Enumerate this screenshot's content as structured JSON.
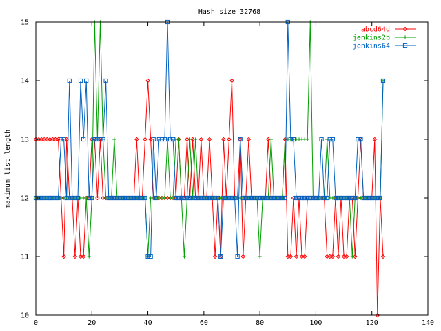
{
  "chart_data": {
    "type": "line",
    "title": "Hash size 32768",
    "xlabel": "",
    "ylabel": "maximum list length",
    "xlim": [
      0,
      140
    ],
    "ylim": [
      10,
      15
    ],
    "xticks": [
      0,
      20,
      40,
      60,
      80,
      100,
      120,
      140
    ],
    "yticks": [
      10,
      11,
      12,
      13,
      14,
      15
    ],
    "grid": false,
    "legend": "top-right",
    "series": [
      {
        "name": "abcd64d",
        "color": "#ff0000",
        "marker": "diamond",
        "values": [
          13,
          13,
          13,
          13,
          13,
          13,
          13,
          13,
          13,
          12,
          11,
          13,
          12,
          12,
          11,
          12,
          11,
          11,
          12,
          12,
          13,
          13,
          12,
          13,
          12,
          12,
          12,
          12,
          12,
          12,
          12,
          12,
          12,
          12,
          12,
          12,
          13,
          12,
          12,
          13,
          14,
          13,
          12,
          12,
          12,
          12,
          12,
          12,
          12,
          12,
          12,
          13,
          12,
          12,
          13,
          12,
          13,
          12,
          12,
          13,
          12,
          12,
          13,
          12,
          11,
          12,
          11,
          13,
          12,
          13,
          14,
          12,
          12,
          13,
          11,
          12,
          13,
          12,
          12,
          12,
          12,
          12,
          12,
          13,
          12,
          12,
          12,
          12,
          12,
          13,
          11,
          11,
          12,
          11,
          12,
          11,
          11,
          12,
          12,
          12,
          12,
          12,
          12,
          12,
          11,
          11,
          11,
          12,
          11,
          12,
          11,
          11,
          12,
          12,
          11,
          12,
          13,
          12,
          12,
          12,
          12,
          13,
          10,
          12,
          11
        ]
      },
      {
        "name": "jenkins2b",
        "color": "#00a000",
        "marker": "plus",
        "values": [
          12,
          12,
          12,
          12,
          12,
          12,
          12,
          12,
          12,
          12,
          12,
          12,
          12,
          12,
          12,
          12,
          12,
          12,
          12,
          11,
          12,
          15,
          13,
          15,
          13,
          12,
          12,
          12,
          13,
          12,
          12,
          12,
          12,
          12,
          12,
          12,
          12,
          12,
          12,
          12,
          11,
          12,
          12,
          12,
          12,
          12,
          12,
          13,
          12,
          12,
          13,
          13,
          12,
          11,
          12,
          13,
          12,
          13,
          12,
          12,
          12,
          12,
          12,
          12,
          12,
          12,
          12,
          12,
          12,
          12,
          12,
          12,
          12,
          12,
          12,
          12,
          12,
          12,
          12,
          12,
          11,
          12,
          12,
          12,
          13,
          12,
          12,
          12,
          12,
          13,
          13,
          13,
          13,
          13,
          13,
          13,
          13,
          13,
          15,
          12,
          12,
          12,
          12,
          12,
          13,
          12,
          12,
          12,
          12,
          12,
          12,
          12,
          12,
          11,
          12,
          12,
          12,
          12,
          12,
          12,
          12,
          12,
          12,
          12,
          14
        ]
      },
      {
        "name": "jenkins64",
        "color": "#0060c0",
        "marker": "square",
        "values": [
          12,
          12,
          12,
          12,
          12,
          12,
          12,
          12,
          12,
          13,
          13,
          12,
          14,
          12,
          12,
          12,
          14,
          13,
          14,
          12,
          12,
          13,
          13,
          13,
          13,
          14,
          12,
          12,
          12,
          12,
          12,
          12,
          12,
          12,
          12,
          12,
          12,
          12,
          12,
          12,
          11,
          11,
          13,
          12,
          13,
          13,
          13,
          15,
          13,
          13,
          12,
          12,
          12,
          12,
          12,
          12,
          12,
          12,
          12,
          12,
          12,
          12,
          12,
          12,
          12,
          12,
          11,
          12,
          12,
          12,
          12,
          12,
          11,
          13,
          12,
          12,
          12,
          12,
          12,
          12,
          12,
          12,
          12,
          12,
          12,
          12,
          12,
          12,
          12,
          12,
          15,
          13,
          13,
          12,
          12,
          12,
          12,
          12,
          12,
          12,
          12,
          12,
          13,
          12,
          12,
          13,
          13,
          12,
          12,
          12,
          12,
          12,
          12,
          12,
          12,
          13,
          13,
          12,
          12,
          12,
          12,
          12,
          12,
          12,
          14
        ]
      }
    ]
  }
}
